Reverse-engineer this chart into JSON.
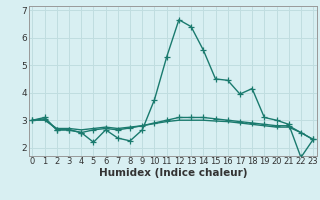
{
  "title": "",
  "xlabel": "Humidex (Indice chaleur)",
  "background_color": "#d8eff2",
  "grid_color": "#c0dde0",
  "line_color": "#1a7a6e",
  "x": [
    0,
    1,
    2,
    3,
    4,
    5,
    6,
    7,
    8,
    9,
    10,
    11,
    12,
    13,
    14,
    15,
    16,
    17,
    18,
    19,
    20,
    21,
    22,
    23
  ],
  "line1": [
    3.0,
    3.1,
    2.65,
    2.65,
    2.55,
    2.2,
    2.65,
    2.35,
    2.25,
    2.65,
    3.75,
    5.3,
    6.65,
    6.4,
    5.55,
    4.5,
    4.45,
    3.95,
    4.15,
    3.1,
    3.0,
    2.85,
    1.65,
    2.3
  ],
  "line2": [
    3.0,
    3.05,
    2.65,
    2.65,
    2.55,
    2.65,
    2.7,
    2.65,
    2.72,
    2.8,
    2.9,
    3.0,
    3.1,
    3.1,
    3.1,
    3.05,
    3.0,
    2.95,
    2.9,
    2.85,
    2.8,
    2.8,
    2.55,
    2.3
  ],
  "line3": [
    3.0,
    3.0,
    2.7,
    2.7,
    2.65,
    2.7,
    2.75,
    2.7,
    2.75,
    2.8,
    2.88,
    2.95,
    3.0,
    3.0,
    3.0,
    2.97,
    2.95,
    2.9,
    2.85,
    2.8,
    2.75,
    2.75,
    2.55,
    2.3
  ],
  "ylim": [
    1.7,
    7.15
  ],
  "yticks": [
    2,
    3,
    4,
    5,
    6,
    7
  ],
  "xlim": [
    -0.3,
    23.3
  ],
  "marker": "+",
  "markersize": 4,
  "linewidth": 1.0,
  "tick_fontsize": 6.5,
  "xlabel_fontsize": 7.5
}
